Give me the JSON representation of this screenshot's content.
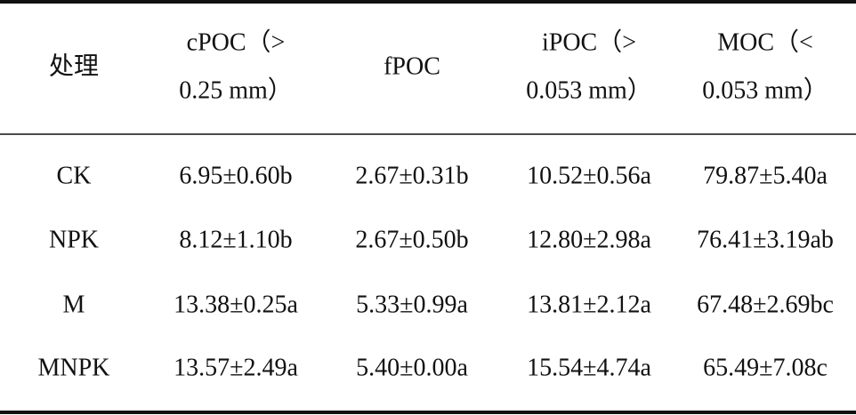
{
  "table": {
    "header": [
      [
        "处理"
      ],
      [
        "cPOC（>",
        "0.25 mm）"
      ],
      [
        "fPOC"
      ],
      [
        "iPOC（>",
        "0.053 mm）"
      ],
      [
        "MOC（<",
        "0.053 mm）"
      ]
    ],
    "rows": [
      [
        "CK",
        "6.95±0.60b",
        "2.67±0.31b",
        "10.52±0.56a",
        "79.87±5.40a"
      ],
      [
        "NPK",
        "8.12±1.10b",
        "2.67±0.50b",
        "12.80±2.98a",
        "76.41±3.19ab"
      ],
      [
        "M",
        "13.38±0.25a",
        "5.33±0.99a",
        "13.81±2.12a",
        "67.48±2.69bc"
      ],
      [
        "MNPK",
        "13.57±2.49a",
        "5.40±0.00a",
        "15.54±4.74a",
        "65.49±7.08c"
      ]
    ]
  }
}
